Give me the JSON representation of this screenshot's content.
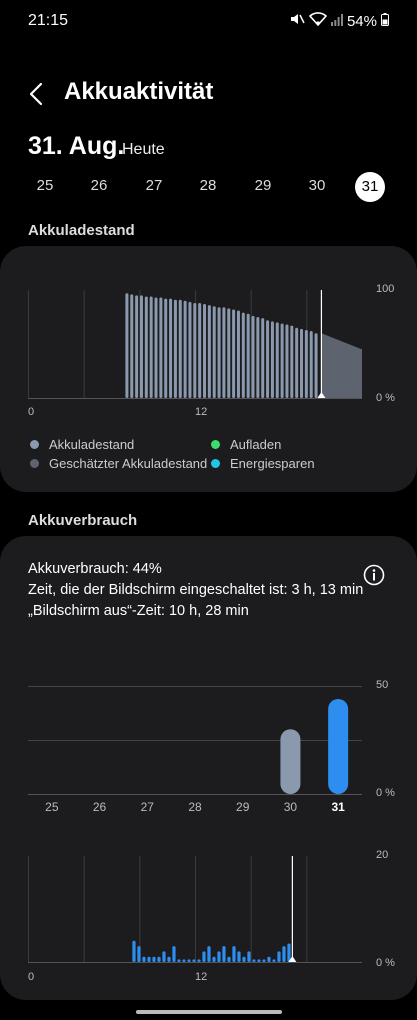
{
  "status": {
    "time": "21:15",
    "battery": "54%"
  },
  "header": {
    "title": "Akkuaktivität"
  },
  "date": {
    "big": "31. Aug.",
    "today": "Heute"
  },
  "days": [
    "25",
    "26",
    "27",
    "28",
    "29",
    "30",
    "31"
  ],
  "selected_day": "31",
  "section1": {
    "title": "Akkuladestand"
  },
  "level_chart": {
    "y_max_label": "100",
    "y_min_label": "0 %",
    "x_labels": [
      "0",
      "12"
    ],
    "values": [
      97,
      96,
      95,
      95,
      94,
      94,
      93,
      93,
      92,
      92,
      91,
      91,
      90,
      89,
      88,
      88,
      87,
      86,
      85,
      84,
      84,
      83,
      82,
      81,
      79,
      78,
      76,
      75,
      74,
      72,
      71,
      70,
      69,
      68,
      67,
      65,
      64,
      63,
      62,
      60
    ],
    "estimated_start": 60,
    "estimated_end": 45,
    "colors": {
      "level": "#8a99ad",
      "estimated": "#5d6470",
      "charging": "#3ddc6e",
      "saving": "#1fc6e6"
    }
  },
  "legend": [
    {
      "label": "Akkuladestand",
      "color": "#8a99ad"
    },
    {
      "label": "Geschätzter Akkuladestand",
      "color": "#5d6470"
    },
    {
      "label": "Aufladen",
      "color": "#3ddc6e"
    },
    {
      "label": "Energiesparen",
      "color": "#1fc6e6"
    }
  ],
  "section2": {
    "title": "Akkuverbrauch"
  },
  "usage": {
    "line1": "Akkuverbrauch: 44%",
    "line2": "Zeit, die der Bildschirm eingeschaltet ist: 3 h, 13 min",
    "line3": "„Bildschirm aus“-Zeit: 10 h, 28 min"
  },
  "daily_chart": {
    "y_max_label": "50",
    "y_min_label": "0 %",
    "categories": [
      "25",
      "26",
      "27",
      "28",
      "29",
      "30",
      "31"
    ],
    "values": [
      0,
      0,
      0,
      0,
      0,
      30,
      44
    ],
    "y_max": 50,
    "colors": {
      "past": "#8a99ad",
      "today": "#2d8ef0"
    }
  },
  "hourly_chart": {
    "y_max_label": "20",
    "y_min_label": "0 %",
    "x_labels": [
      "0",
      "12"
    ],
    "values": [
      0,
      0,
      0,
      0,
      0,
      0,
      0,
      0,
      0,
      0,
      0,
      0,
      0,
      0,
      0,
      0,
      0,
      0,
      0,
      0,
      0,
      0,
      0,
      0,
      0,
      0,
      0,
      4,
      3,
      1,
      1,
      1,
      1,
      2,
      1,
      3,
      0.5,
      0.5,
      0.5,
      0.5,
      0.5,
      2,
      3,
      1,
      2,
      3,
      1,
      3,
      2,
      1,
      2,
      0.5,
      0.5,
      0.5,
      1,
      0.5,
      2,
      3,
      3.5
    ],
    "y_max": 20,
    "color": "#2d8ef0"
  }
}
